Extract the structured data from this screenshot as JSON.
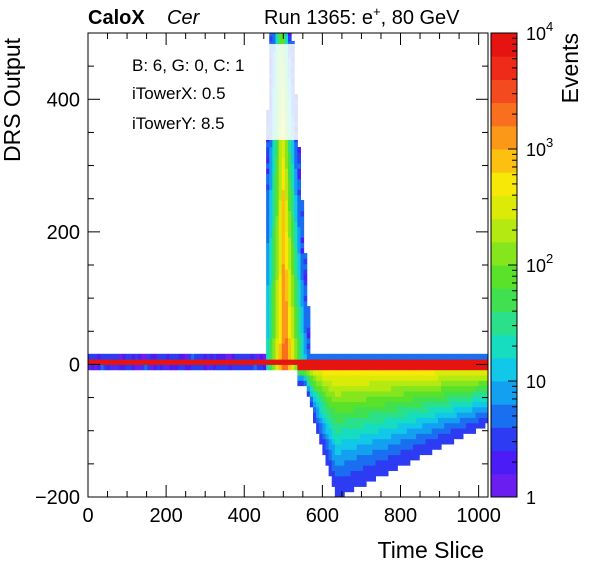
{
  "header": {
    "brand": "CaloX",
    "channel": "Cer",
    "run_text": "Run 1365: e",
    "run_sup": "+",
    "run_energy": ", 80 GeV"
  },
  "info_box": {
    "line1": "B: 6, G: 0, C: 1",
    "line2": "iTowerX: 0.5",
    "line3": "iTowerY: 8.5"
  },
  "chart_data": {
    "type": "heatmap",
    "title": "",
    "xlabel": "Time Slice",
    "ylabel": "DRS Output",
    "zlabel": "Events",
    "xlim": [
      0,
      1024
    ],
    "ylim": [
      -200,
      500
    ],
    "zlim": [
      1,
      10000
    ],
    "z_scale": "log",
    "x_ticks": [
      "0",
      "200",
      "400",
      "600",
      "800",
      "1000"
    ],
    "y_ticks": [
      "−200",
      "0",
      "200",
      "400"
    ],
    "z_ticks": [
      {
        "base": "1",
        "exp": ""
      },
      {
        "base": "10",
        "exp": ""
      },
      {
        "base": "10",
        "exp": "2"
      },
      {
        "base": "10",
        "exp": "3"
      },
      {
        "base": "10",
        "exp": "4"
      }
    ],
    "features": {
      "pedestal": {
        "y_center": 5,
        "x_range": [
          0,
          1024
        ],
        "peak_counts": 10000
      },
      "pulse_rise": {
        "x_range": [
          460,
          560
        ],
        "y_max": 500,
        "peak_counts": 3000
      },
      "undershoot": {
        "x_range": [
          540,
          1024
        ],
        "y_min": -200,
        "peak_counts": 300
      }
    },
    "palette": [
      "#6a1ff0",
      "#4b1cf5",
      "#2d3cf2",
      "#1a6ef0",
      "#14a0f0",
      "#12c8e8",
      "#16dcc0",
      "#2ae08a",
      "#40e050",
      "#5ae22a",
      "#86e61e",
      "#b4ea12",
      "#dcea08",
      "#f8e808",
      "#fcc010",
      "#fb9818",
      "#f8701e",
      "#f44a20",
      "#ee2a18",
      "#e61410"
    ]
  }
}
